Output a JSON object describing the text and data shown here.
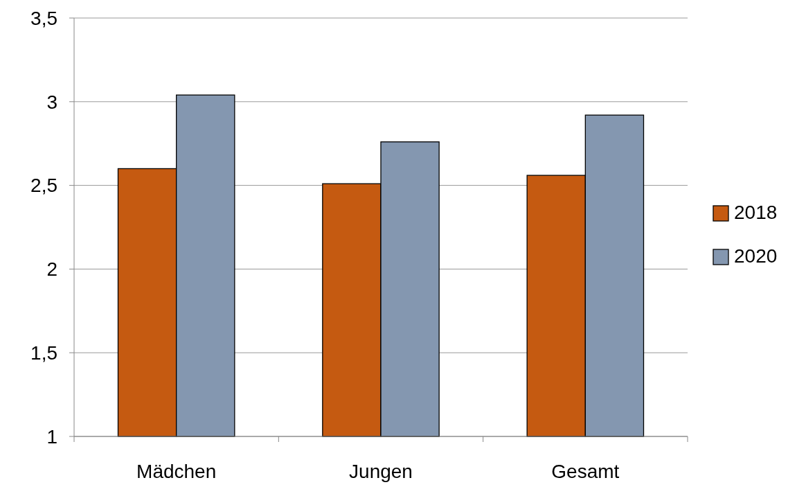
{
  "chart_data": {
    "type": "bar",
    "categories": [
      "Mädchen",
      "Jungen",
      "Gesamt"
    ],
    "series": [
      {
        "name": "2018",
        "color": "#c55a11",
        "values": [
          2.6,
          2.51,
          2.56
        ]
      },
      {
        "name": "2020",
        "color": "#8497b0",
        "values": [
          3.04,
          2.76,
          2.92
        ]
      }
    ],
    "ylim": [
      1,
      3.5
    ],
    "yticks": [
      1,
      {
        "value": 1.5,
        "label": "1,5"
      },
      2,
      {
        "value": 2.5,
        "label": "2,5"
      },
      3,
      {
        "value": 3.5,
        "label": "3,5"
      }
    ],
    "grid": "y",
    "legend": "right"
  }
}
